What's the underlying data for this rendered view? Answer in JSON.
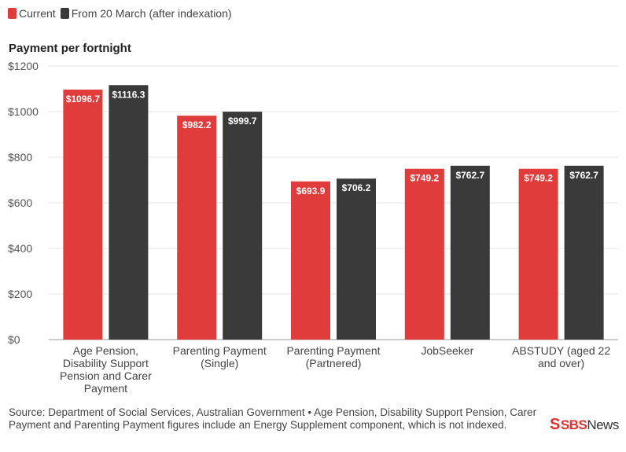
{
  "legend": {
    "items": [
      {
        "label": "Current",
        "color": "#e03c3c"
      },
      {
        "label": "From 20 March (after indexation)",
        "color": "#3a3a3a"
      }
    ]
  },
  "y_title": "Payment per fortnight",
  "source": "Source: Department of Social Services, Australian Government • Age Pension, Disability Support Pension, Carer Payment and Parenting Payment figures include an Energy Supplement component, which is not indexed.",
  "logo": {
    "mark": "S",
    "brand": "SBS",
    "suffix": "News"
  },
  "chart_data": {
    "type": "bar",
    "ylabel": "Payment per fortnight",
    "ylim": [
      0,
      1200
    ],
    "yticks": [
      0,
      200,
      400,
      600,
      800,
      1000,
      1200
    ],
    "ytick_labels": [
      "$0",
      "$200",
      "$400",
      "$600",
      "$800",
      "$1000",
      "$1200"
    ],
    "grid": true,
    "categories": [
      [
        "Age Pension,",
        "Disability Support",
        "Pension and Carer",
        "Payment"
      ],
      [
        "Parenting Payment",
        "(Single)"
      ],
      [
        "Parenting Payment",
        "(Partnered)"
      ],
      [
        "JobSeeker"
      ],
      [
        "ABSTUDY (aged 22",
        "and over)"
      ]
    ],
    "series": [
      {
        "name": "Current",
        "color": "#e03c3c",
        "values": [
          1096.7,
          982.2,
          693.9,
          749.2,
          749.2
        ],
        "labels": [
          "$1096.7",
          "$982.2",
          "$693.9",
          "$749.2",
          "$749.2"
        ]
      },
      {
        "name": "From 20 March (after indexation)",
        "color": "#3a3a3a",
        "values": [
          1116.3,
          999.7,
          706.2,
          762.7,
          762.7
        ],
        "labels": [
          "$1116.3",
          "$999.7",
          "$706.2",
          "$762.7",
          "$762.7"
        ]
      }
    ]
  }
}
